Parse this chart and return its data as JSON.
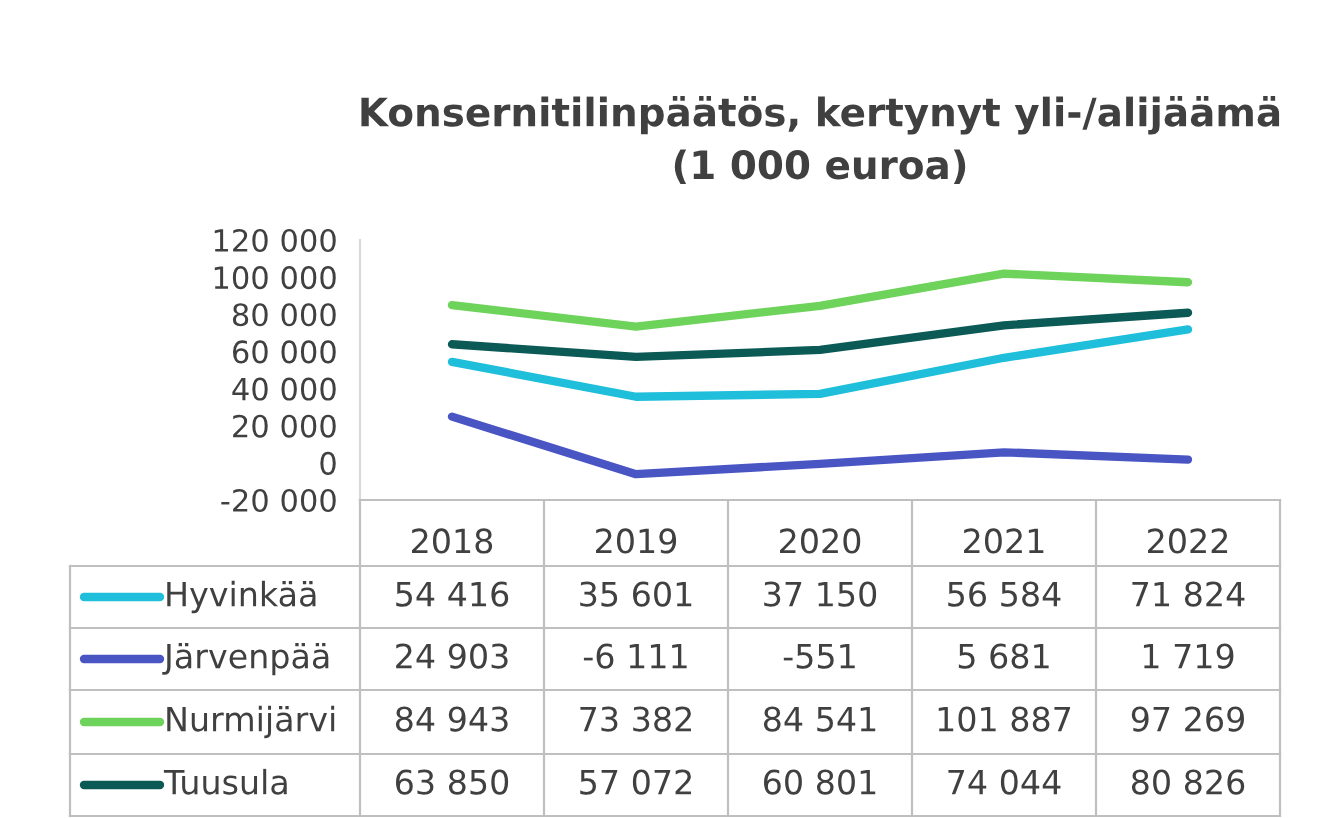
{
  "chart_data": {
    "type": "line",
    "title": "Konsernitilinpäätös, kertynyt yli-/alijäämä\n(1 000 euroa)",
    "categories": [
      "2018",
      "2019",
      "2020",
      "2021",
      "2022"
    ],
    "ylim": [
      -20000,
      120000
    ],
    "yticks": [
      {
        "value": -20000,
        "label": "-20 000"
      },
      0,
      {
        "value": 20000,
        "label": "20 000"
      },
      {
        "value": 40000,
        "label": "40 000"
      },
      {
        "value": 60000,
        "label": "60 000"
      },
      {
        "value": 80000,
        "label": "80 000"
      },
      {
        "value": 100000,
        "label": "100 000"
      },
      {
        "value": 120000,
        "label": "120 000"
      }
    ],
    "grid": false,
    "legend": "left",
    "marker": "none",
    "line_style": "solid",
    "series": [
      {
        "name": "Hyvinkää",
        "color": "#1fbfdc",
        "values": [
          54416,
          35601,
          37150,
          56584,
          71824
        ],
        "value_labels": [
          "54 416",
          "35 601",
          "37 150",
          "56 584",
          "71 824"
        ]
      },
      {
        "name": "Järvenpää",
        "color": "#4a55c4",
        "values": [
          24903,
          -6111,
          -551,
          5681,
          1719
        ],
        "value_labels": [
          "24 903",
          "-6 111",
          "-551",
          "5 681",
          "1 719"
        ]
      },
      {
        "name": "Nurmijärvi",
        "color": "#6dd35a",
        "values": [
          84943,
          73382,
          84541,
          101887,
          97269
        ],
        "value_labels": [
          "84 943",
          "73 382",
          "84 541",
          "101 887",
          "97 269"
        ]
      },
      {
        "name": "Tuusula",
        "color": "#0b5a55",
        "values": [
          63850,
          57072,
          60801,
          74044,
          80826
        ],
        "value_labels": [
          "63 850",
          "57 072",
          "60 801",
          "74 044",
          "80 826"
        ]
      }
    ]
  }
}
